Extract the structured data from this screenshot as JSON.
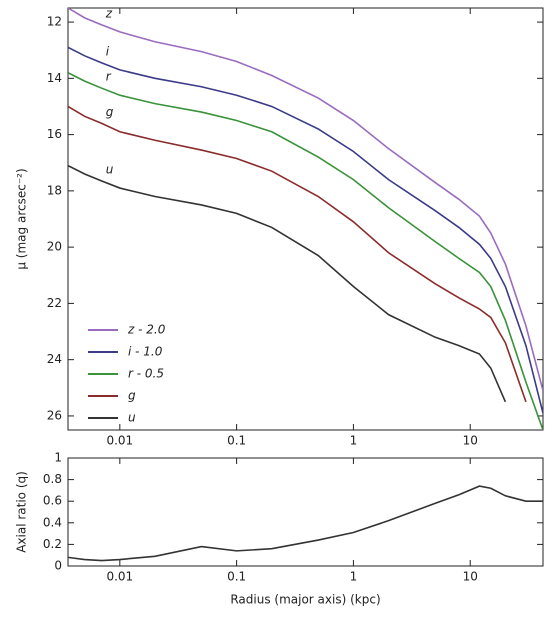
{
  "chart_data": [
    {
      "type": "line",
      "xscale": "log",
      "y_inverted": true,
      "ylabel": "μ (mag arcsec⁻²)",
      "x": [
        0.0036,
        0.005,
        0.007,
        0.01,
        0.02,
        0.05,
        0.1,
        0.2,
        0.5,
        1,
        2,
        5,
        8,
        12,
        15,
        20,
        30,
        42
      ],
      "xlim": [
        0.0036,
        42
      ],
      "xticks": [
        0.01,
        0.1,
        1,
        10
      ],
      "ylim": [
        11.5,
        26.5
      ],
      "yticks": [
        12,
        14,
        16,
        18,
        20,
        22,
        24,
        26
      ],
      "legend": "lower left",
      "annotations": [
        "z",
        "i",
        "r",
        "g",
        "u"
      ],
      "series": [
        {
          "name": "z - 2.0",
          "color": "#9a6cc0",
          "values": [
            11.5,
            11.85,
            12.1,
            12.35,
            12.7,
            13.05,
            13.4,
            13.9,
            14.7,
            15.5,
            16.5,
            17.7,
            18.3,
            18.9,
            19.5,
            20.6,
            22.8,
            25.1
          ]
        },
        {
          "name": "i - 1.0",
          "color": "#3b3b8a",
          "values": [
            12.9,
            13.2,
            13.45,
            13.7,
            14.0,
            14.3,
            14.6,
            15.0,
            15.8,
            16.6,
            17.6,
            18.7,
            19.3,
            19.9,
            20.4,
            21.4,
            23.5,
            25.9
          ]
        },
        {
          "name": "r - 0.5",
          "color": "#3a923a",
          "values": [
            13.8,
            14.1,
            14.35,
            14.6,
            14.9,
            15.2,
            15.5,
            15.9,
            16.8,
            17.6,
            18.6,
            19.8,
            20.4,
            20.9,
            21.4,
            22.6,
            24.8,
            26.5
          ]
        },
        {
          "name": "g",
          "color": "#8a2c2c",
          "values": [
            15.0,
            15.35,
            15.6,
            15.9,
            16.2,
            16.55,
            16.85,
            17.3,
            18.2,
            19.1,
            20.2,
            21.3,
            21.8,
            22.2,
            22.5,
            23.4,
            25.5,
            null
          ]
        },
        {
          "name": "u",
          "color": "#333333",
          "values": [
            17.1,
            17.4,
            17.65,
            17.9,
            18.2,
            18.5,
            18.8,
            19.3,
            20.3,
            21.4,
            22.4,
            23.2,
            23.5,
            23.8,
            24.3,
            25.5,
            null,
            null
          ]
        }
      ]
    },
    {
      "type": "line",
      "xscale": "log",
      "xlabel": "Radius (major axis) (kpc)",
      "ylabel": "Axial ratio (q)",
      "x": [
        0.0036,
        0.005,
        0.007,
        0.01,
        0.02,
        0.05,
        0.1,
        0.2,
        0.5,
        1,
        2,
        5,
        8,
        12,
        15,
        20,
        30,
        42
      ],
      "xlim": [
        0.0036,
        42
      ],
      "xticks": [
        0.01,
        0.1,
        1,
        10
      ],
      "ylim": [
        0,
        1
      ],
      "yticks": [
        0,
        0.2,
        0.4,
        0.6,
        0.8,
        1
      ],
      "series": [
        {
          "color": "#333333",
          "values": [
            0.08,
            0.06,
            0.05,
            0.06,
            0.09,
            0.18,
            0.14,
            0.16,
            0.24,
            0.31,
            0.42,
            0.58,
            0.66,
            0.74,
            0.72,
            0.65,
            0.6,
            0.6
          ]
        }
      ]
    }
  ]
}
